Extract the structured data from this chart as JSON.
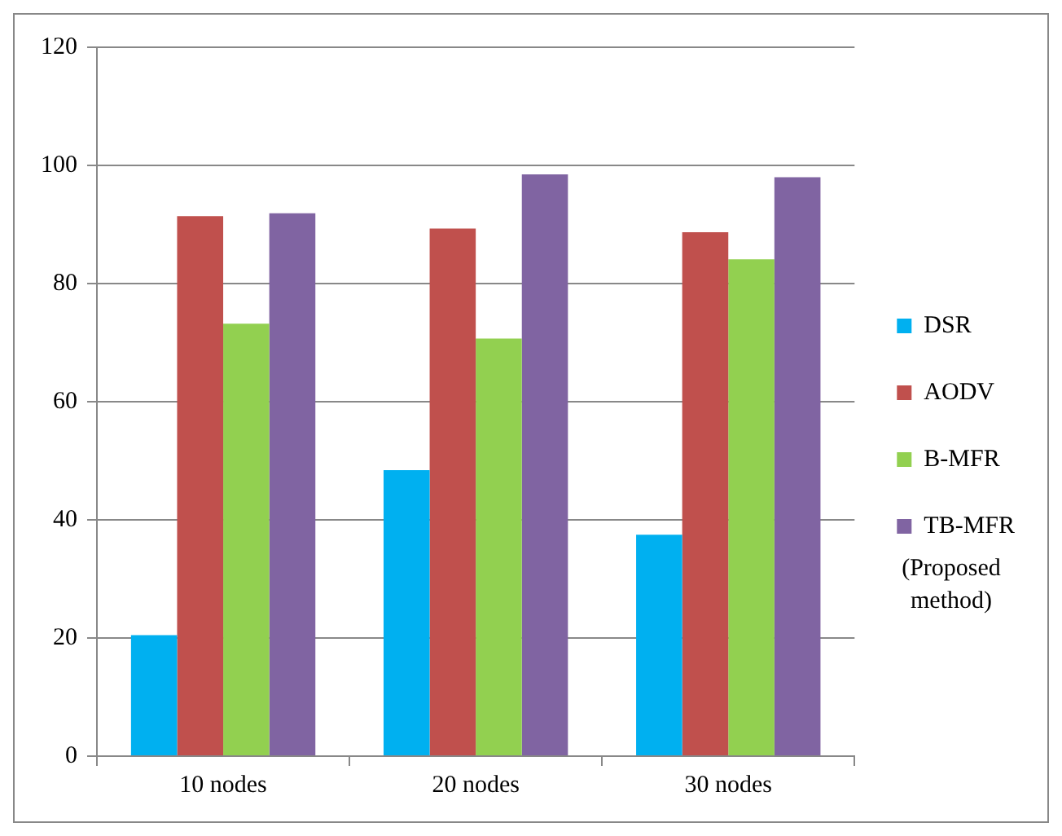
{
  "chart_data": {
    "type": "bar",
    "categories": [
      "10 nodes",
      "20 nodes",
      "30 nodes"
    ],
    "series": [
      {
        "name": "DSR",
        "color": "#00b0f0",
        "values": [
          20.5,
          48.4,
          37.5
        ]
      },
      {
        "name": "AODV",
        "color": "#c0504d",
        "values": [
          91.4,
          89.3,
          88.7
        ]
      },
      {
        "name": "B-MFR",
        "color": "#92d050",
        "values": [
          73.2,
          70.7,
          84.1
        ]
      },
      {
        "name": "TB-MFR",
        "color": "#8064a2",
        "values": [
          91.9,
          98.5,
          98.0
        ]
      }
    ],
    "ylim": [
      0,
      120
    ],
    "yticks": [
      0,
      20,
      40,
      60,
      80,
      100,
      120
    ],
    "grid": "y",
    "legend": "right",
    "annotations": [
      "(Proposed method)"
    ]
  }
}
